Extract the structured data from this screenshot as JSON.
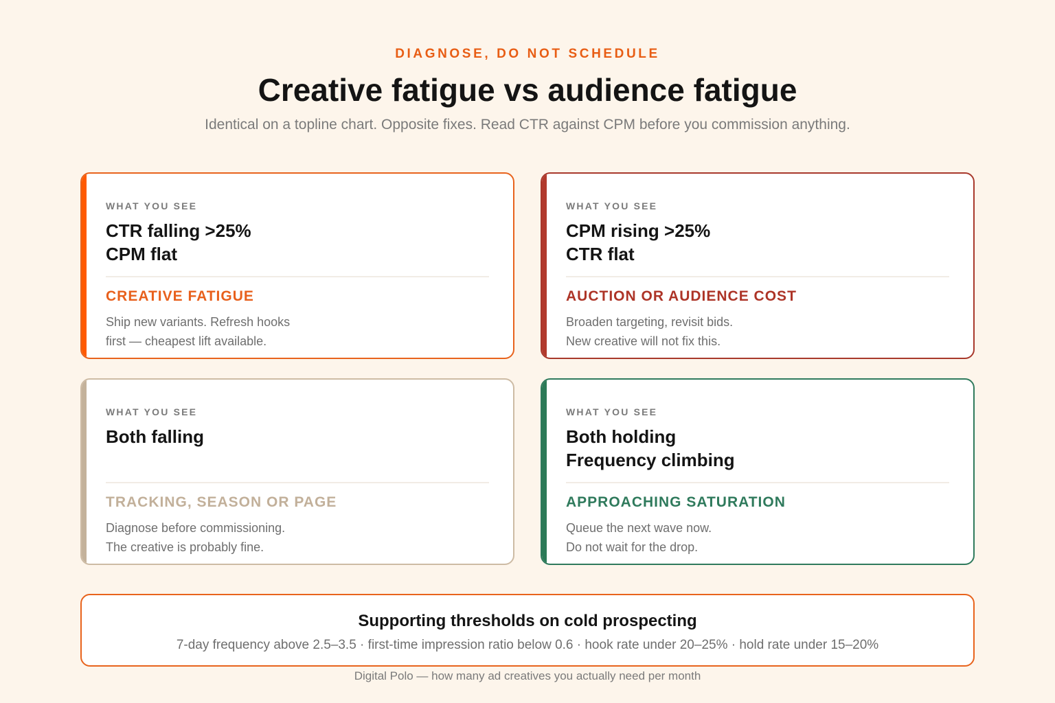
{
  "header": {
    "eyebrow": "DIAGNOSE, DO NOT SCHEDULE",
    "title": "Creative fatigue vs audience fatigue",
    "subtitle": "Identical on a topline chart. Opposite fixes. Read CTR against CPM before you commission anything."
  },
  "cards": [
    {
      "label": "WHAT YOU SEE",
      "headline_1": "CTR falling >25%",
      "headline_2": "CPM flat",
      "verdict": "CREATIVE FATIGUE",
      "body_1": "Ship new variants. Refresh hooks",
      "body_2": "first — cheapest lift available.",
      "accent": "#e8601c"
    },
    {
      "label": "WHAT YOU SEE",
      "headline_1": "CPM rising >25%",
      "headline_2": "CTR flat",
      "verdict": "AUCTION OR AUDIENCE COST",
      "body_1": "Broaden targeting, revisit bids.",
      "body_2": "New creative will not fix this.",
      "accent": "#ad3427"
    },
    {
      "label": "WHAT YOU SEE",
      "headline_1": "Both falling",
      "headline_2": "",
      "verdict": "TRACKING, SEASON OR PAGE",
      "body_1": "Diagnose before commissioning.",
      "body_2": "The creative is probably fine.",
      "accent": "#c2b09a"
    },
    {
      "label": "WHAT YOU SEE",
      "headline_1": "Both holding",
      "headline_2": "Frequency climbing",
      "verdict": "APPROACHING SATURATION",
      "body_1": "Queue the next wave now.",
      "body_2": "Do not wait for the drop.",
      "accent": "#2f7a5c"
    }
  ],
  "thresholds": {
    "title": "Supporting thresholds on cold prospecting",
    "body": "7-day frequency above 2.5–3.5 · first-time impression ratio below 0.6 · hook rate under 20–25% · hold rate under 15–20%"
  },
  "footer": "Digital Polo — how many ad creatives you actually need per month"
}
